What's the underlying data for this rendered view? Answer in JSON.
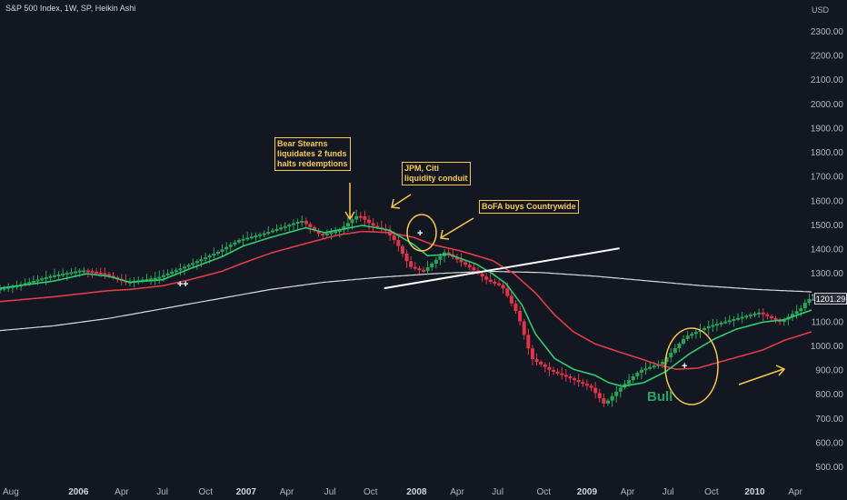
{
  "header": {
    "title": "S&P 500 Index, 1W, SP, Heikin Ashi",
    "currency": "USD"
  },
  "last_price": "1201.29",
  "annotations": {
    "bear_stearns": "Bear Stearns\nliquidates 2 funds\nhalts redemptions",
    "jpm_citi": "JPM, Citi\nliquidity conduit",
    "bofa": "BoFA buys Countrywide",
    "bull": "Bull"
  },
  "colors": {
    "background": "#131722",
    "up_candle": "#26a65b",
    "down_candle": "#e0354b",
    "ma_fast": "#2ecc71",
    "ma_slow": "#e03c4a",
    "ma_long": "#d9d9d9",
    "trendline": "#ffffff",
    "annotation": "#f7c948"
  },
  "chart_data": {
    "type": "line",
    "chart_style": "heikin-ashi candlestick with moving averages",
    "x_ticks": [
      {
        "label": "Aug",
        "year": false
      },
      {
        "label": "2006",
        "year": true
      },
      {
        "label": "Apr",
        "year": false
      },
      {
        "label": "Jul",
        "year": false
      },
      {
        "label": "Oct",
        "year": false
      },
      {
        "label": "2007",
        "year": true
      },
      {
        "label": "Apr",
        "year": false
      },
      {
        "label": "Jul",
        "year": false
      },
      {
        "label": "Oct",
        "year": false
      },
      {
        "label": "2008",
        "year": true
      },
      {
        "label": "Apr",
        "year": false
      },
      {
        "label": "Jul",
        "year": false
      },
      {
        "label": "Oct",
        "year": false
      },
      {
        "label": "2009",
        "year": true
      },
      {
        "label": "Apr",
        "year": false
      },
      {
        "label": "Jul",
        "year": false
      },
      {
        "label": "Oct",
        "year": false
      },
      {
        "label": "2010",
        "year": true
      },
      {
        "label": "Apr",
        "year": false
      }
    ],
    "y_ticks": [
      "2300.00",
      "2200.00",
      "2100.00",
      "2000.00",
      "1900.00",
      "1800.00",
      "1700.00",
      "1600.00",
      "1500.00",
      "1400.00",
      "1300.00",
      "1200.00",
      "1100.00",
      "1000.00",
      "900.00",
      "800.00",
      "700.00",
      "600.00",
      "500.00"
    ],
    "ylim": [
      480,
      2370
    ],
    "price_path": [
      [
        0,
        1235
      ],
      [
        0.9,
        1255
      ],
      [
        2.0,
        1290
      ],
      [
        3.2,
        1315
      ],
      [
        4.0,
        1300
      ],
      [
        4.8,
        1265
      ],
      [
        6.0,
        1285
      ],
      [
        7.0,
        1330
      ],
      [
        8.2,
        1390
      ],
      [
        9.0,
        1440
      ],
      [
        10.0,
        1470
      ],
      [
        11.3,
        1520
      ],
      [
        12.0,
        1460
      ],
      [
        12.7,
        1480
      ],
      [
        13.4,
        1545
      ],
      [
        13.9,
        1500
      ],
      [
        14.4,
        1480
      ],
      [
        14.8,
        1430
      ],
      [
        15.3,
        1330
      ],
      [
        15.8,
        1310
      ],
      [
        16.6,
        1390
      ],
      [
        17.6,
        1320
      ],
      [
        18.2,
        1270
      ],
      [
        18.7,
        1250
      ],
      [
        19.3,
        1130
      ],
      [
        19.8,
        950
      ],
      [
        20.5,
        900
      ],
      [
        21.2,
        870
      ],
      [
        22.0,
        830
      ],
      [
        22.5,
        760
      ],
      [
        23.0,
        820
      ],
      [
        23.8,
        900
      ],
      [
        24.6,
        930
      ],
      [
        25.5,
        1040
      ],
      [
        26.4,
        1085
      ],
      [
        27.2,
        1110
      ],
      [
        28.2,
        1140
      ],
      [
        29.0,
        1100
      ],
      [
        29.8,
        1160
      ],
      [
        30.0,
        1195
      ]
    ],
    "ma_fast_path": [
      [
        0,
        1240
      ],
      [
        2.0,
        1270
      ],
      [
        3.2,
        1300
      ],
      [
        4.0,
        1290
      ],
      [
        4.8,
        1265
      ],
      [
        6.0,
        1275
      ],
      [
        7.0,
        1320
      ],
      [
        8.2,
        1370
      ],
      [
        9.0,
        1415
      ],
      [
        10.0,
        1450
      ],
      [
        11.3,
        1490
      ],
      [
        12.0,
        1470
      ],
      [
        13.4,
        1500
      ],
      [
        14.4,
        1480
      ],
      [
        15.3,
        1420
      ],
      [
        15.8,
        1375
      ],
      [
        16.6,
        1380
      ],
      [
        17.6,
        1340
      ],
      [
        18.2,
        1300
      ],
      [
        18.7,
        1260
      ],
      [
        19.3,
        1170
      ],
      [
        19.8,
        1050
      ],
      [
        20.5,
        950
      ],
      [
        21.2,
        905
      ],
      [
        22.0,
        880
      ],
      [
        22.5,
        850
      ],
      [
        23.0,
        835
      ],
      [
        23.8,
        850
      ],
      [
        24.6,
        895
      ],
      [
        25.5,
        970
      ],
      [
        26.4,
        1030
      ],
      [
        27.2,
        1070
      ],
      [
        28.2,
        1100
      ],
      [
        29.0,
        1110
      ],
      [
        30.0,
        1150
      ]
    ],
    "ma_slow_path": [
      [
        0,
        1185
      ],
      [
        2.0,
        1205
      ],
      [
        4.0,
        1230
      ],
      [
        4.8,
        1235
      ],
      [
        6.0,
        1250
      ],
      [
        7.0,
        1275
      ],
      [
        8.2,
        1310
      ],
      [
        9.0,
        1345
      ],
      [
        10.0,
        1385
      ],
      [
        11.3,
        1425
      ],
      [
        12.5,
        1460
      ],
      [
        13.4,
        1475
      ],
      [
        14.4,
        1470
      ],
      [
        15.3,
        1450
      ],
      [
        16.0,
        1420
      ],
      [
        17.0,
        1395
      ],
      [
        18.2,
        1355
      ],
      [
        19.0,
        1300
      ],
      [
        19.8,
        1220
      ],
      [
        20.5,
        1130
      ],
      [
        21.2,
        1060
      ],
      [
        22.0,
        1010
      ],
      [
        22.8,
        980
      ],
      [
        23.5,
        955
      ],
      [
        24.3,
        925
      ],
      [
        25.0,
        905
      ],
      [
        25.8,
        910
      ],
      [
        26.6,
        935
      ],
      [
        27.4,
        960
      ],
      [
        28.2,
        985
      ],
      [
        29.0,
        1025
      ],
      [
        30.0,
        1060
      ]
    ],
    "ma_long_path": [
      [
        0,
        1065
      ],
      [
        2.0,
        1085
      ],
      [
        4.0,
        1115
      ],
      [
        6.0,
        1155
      ],
      [
        8.0,
        1195
      ],
      [
        10.0,
        1235
      ],
      [
        12.0,
        1265
      ],
      [
        14.0,
        1285
      ],
      [
        16.0,
        1300
      ],
      [
        18.0,
        1310
      ],
      [
        20.0,
        1305
      ],
      [
        22.0,
        1290
      ],
      [
        24.0,
        1270
      ],
      [
        26.0,
        1250
      ],
      [
        28.0,
        1235
      ],
      [
        30.0,
        1225
      ]
    ],
    "trendline": [
      [
        14.2,
        1240
      ],
      [
        22.9,
        1405
      ]
    ],
    "legend": "none",
    "grid": false
  }
}
